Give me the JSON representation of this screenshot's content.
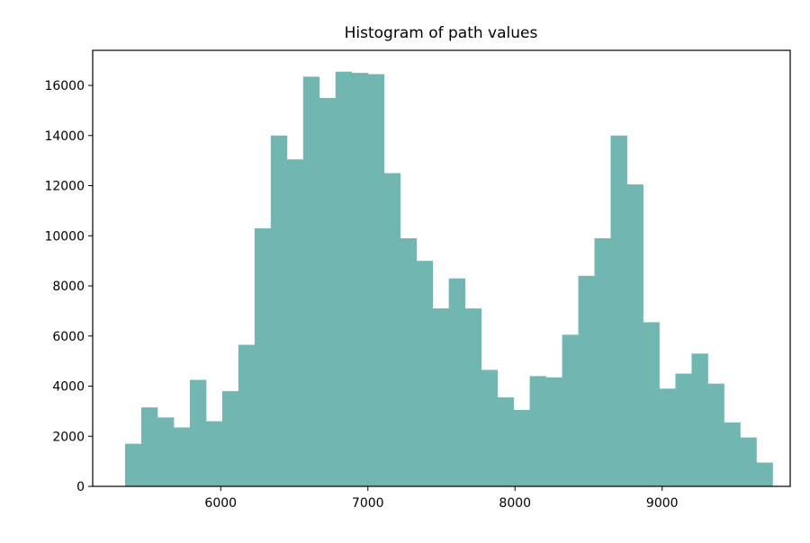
{
  "chart_data": {
    "type": "bar",
    "title": "Histogram of path values",
    "xlabel": "",
    "ylabel": "",
    "xlim": [
      5130,
      9870
    ],
    "ylim": [
      0,
      17400
    ],
    "xticks": [
      6000,
      7000,
      8000,
      9000
    ],
    "yticks": [
      0,
      2000,
      4000,
      6000,
      8000,
      10000,
      12000,
      14000,
      16000
    ],
    "grid": false,
    "bar_color": "#72b6b1",
    "bins": [
      {
        "x0": 5350,
        "x1": 5460,
        "count": 1700
      },
      {
        "x0": 5460,
        "x1": 5570,
        "count": 3150
      },
      {
        "x0": 5570,
        "x1": 5680,
        "count": 2750
      },
      {
        "x0": 5680,
        "x1": 5790,
        "count": 2350
      },
      {
        "x0": 5790,
        "x1": 5900,
        "count": 4250
      },
      {
        "x0": 5900,
        "x1": 6010,
        "count": 2600
      },
      {
        "x0": 6010,
        "x1": 6120,
        "count": 3800
      },
      {
        "x0": 6120,
        "x1": 6230,
        "count": 5650
      },
      {
        "x0": 6230,
        "x1": 6340,
        "count": 10300
      },
      {
        "x0": 6340,
        "x1": 6450,
        "count": 14000
      },
      {
        "x0": 6450,
        "x1": 6560,
        "count": 13050
      },
      {
        "x0": 6560,
        "x1": 6670,
        "count": 16350
      },
      {
        "x0": 6670,
        "x1": 6780,
        "count": 15500
      },
      {
        "x0": 6780,
        "x1": 6890,
        "count": 16550
      },
      {
        "x0": 6890,
        "x1": 7000,
        "count": 16500
      },
      {
        "x0": 7000,
        "x1": 7110,
        "count": 16450
      },
      {
        "x0": 7110,
        "x1": 7220,
        "count": 12500
      },
      {
        "x0": 7220,
        "x1": 7330,
        "count": 9900
      },
      {
        "x0": 7330,
        "x1": 7440,
        "count": 9000
      },
      {
        "x0": 7440,
        "x1": 7550,
        "count": 7100
      },
      {
        "x0": 7550,
        "x1": 7660,
        "count": 8300
      },
      {
        "x0": 7660,
        "x1": 7770,
        "count": 7100
      },
      {
        "x0": 7770,
        "x1": 7880,
        "count": 4650
      },
      {
        "x0": 7880,
        "x1": 7990,
        "count": 3550
      },
      {
        "x0": 7990,
        "x1": 8100,
        "count": 3050
      },
      {
        "x0": 8100,
        "x1": 8210,
        "count": 4400
      },
      {
        "x0": 8210,
        "x1": 8320,
        "count": 4350
      },
      {
        "x0": 8320,
        "x1": 8430,
        "count": 6050
      },
      {
        "x0": 8430,
        "x1": 8540,
        "count": 8400
      },
      {
        "x0": 8540,
        "x1": 8650,
        "count": 9900
      },
      {
        "x0": 8650,
        "x1": 8760,
        "count": 14000
      },
      {
        "x0": 8760,
        "x1": 8870,
        "count": 12050
      },
      {
        "x0": 8870,
        "x1": 8980,
        "count": 6550
      },
      {
        "x0": 8980,
        "x1": 9090,
        "count": 3900
      },
      {
        "x0": 9090,
        "x1": 9200,
        "count": 4500
      },
      {
        "x0": 9200,
        "x1": 9310,
        "count": 5300
      },
      {
        "x0": 9310,
        "x1": 9420,
        "count": 4100
      },
      {
        "x0": 9420,
        "x1": 9530,
        "count": 2550
      },
      {
        "x0": 9530,
        "x1": 9640,
        "count": 1950
      },
      {
        "x0": 9640,
        "x1": 9750,
        "count": 950
      }
    ]
  }
}
